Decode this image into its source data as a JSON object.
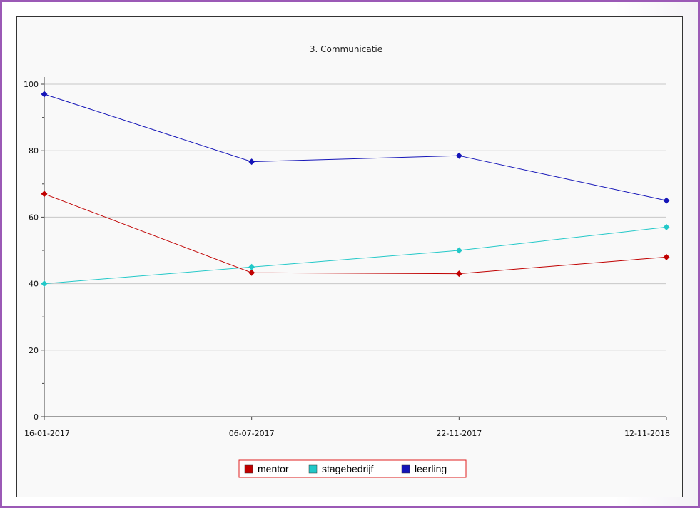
{
  "chart_data": {
    "type": "line",
    "title": "3. Communicatie",
    "xlabel": "",
    "ylabel": "",
    "x": [
      "16-01-2017",
      "06-07-2017",
      "22-11-2017",
      "12-11-2018"
    ],
    "ylim": [
      0,
      100
    ],
    "yticks": [
      0,
      20,
      40,
      60,
      80,
      100
    ],
    "grid": true,
    "legend_position": "bottom-center",
    "series": [
      {
        "name": "mentor",
        "color": "#c00000",
        "values": [
          67,
          43.3,
          43,
          48
        ]
      },
      {
        "name": "stagebedrijf",
        "color": "#22c8c8",
        "values": [
          40,
          45,
          50,
          57
        ]
      },
      {
        "name": "leerling",
        "color": "#1515b8",
        "values": [
          97,
          76.7,
          78.5,
          65
        ]
      }
    ]
  }
}
